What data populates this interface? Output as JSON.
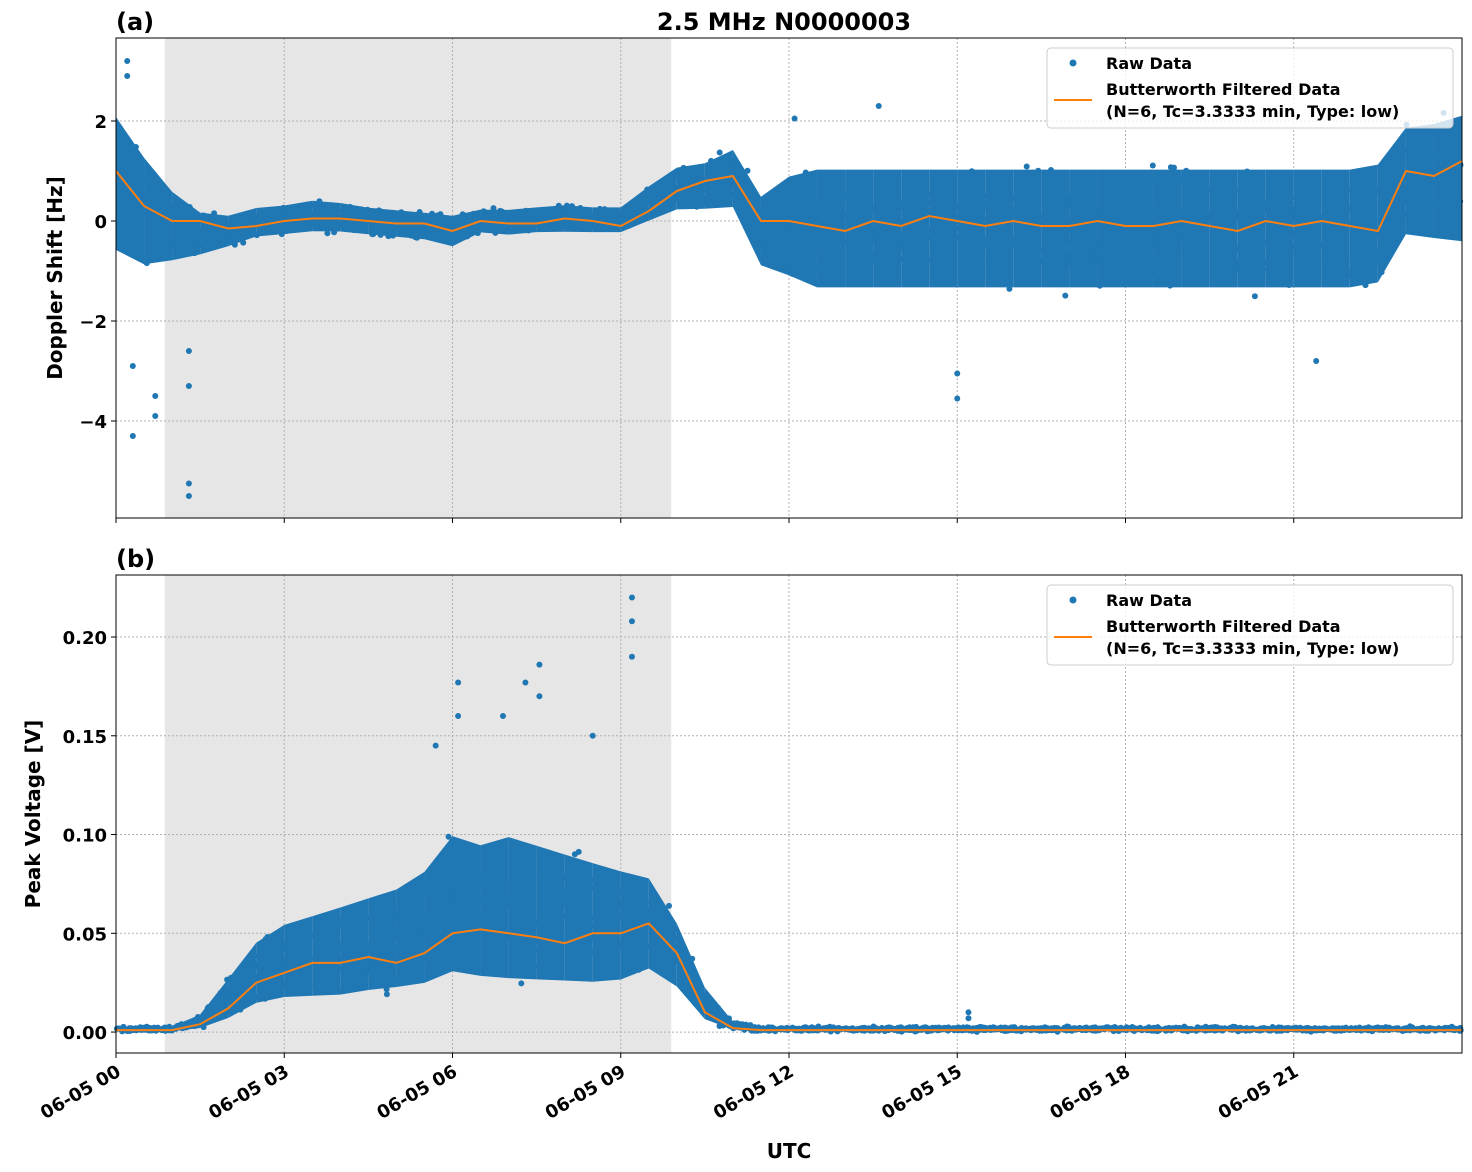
{
  "title": "2.5 MHz N0000003",
  "xlabel": "UTC",
  "colors": {
    "raw": "#1f77b4",
    "filtered": "#ff7f0e",
    "shade": "#e6e6e6"
  },
  "chart_data": [
    {
      "type": "scatter",
      "panel_label": "(a)",
      "ylabel": "Doppler Shift [Hz]",
      "xlim_hours": [
        0,
        24
      ],
      "ylim": [
        -5.94,
        3.66
      ],
      "yticks": [
        2,
        0,
        -2,
        -4
      ],
      "ytick_labels": [
        "2",
        "0",
        "−2",
        "−4"
      ],
      "xtick_labels": [
        "06-05 00",
        "06-05 03",
        "06-05 06",
        "06-05 09",
        "06-05 12",
        "06-05 15",
        "06-05 18",
        "06-05 21"
      ],
      "xticks_hours": [
        0,
        3,
        6,
        9,
        12,
        15,
        18,
        21
      ],
      "shaded_hours": [
        0.87,
        9.9
      ],
      "grid": true,
      "legend": {
        "placement": "top-right",
        "entries": [
          "Raw Data",
          "Butterworth Filtered Data",
          "(N=6, Tc=3.3333 min, Type: low)"
        ]
      },
      "x_hours": [
        0,
        0.5,
        1,
        1.5,
        2,
        2.5,
        3,
        3.5,
        4,
        4.5,
        5,
        5.5,
        6,
        6.5,
        7,
        7.5,
        8,
        8.5,
        9,
        9.5,
        10,
        10.5,
        11,
        11.5,
        12,
        12.5,
        13,
        13.5,
        14,
        14.5,
        15,
        15.5,
        16,
        16.5,
        17,
        17.5,
        18,
        18.5,
        19,
        19.5,
        20,
        20.5,
        21,
        21.5,
        22,
        22.5,
        23,
        23.5,
        24
      ],
      "filtered": [
        1.0,
        0.3,
        0.0,
        0.0,
        -0.15,
        -0.1,
        0.0,
        0.05,
        0.05,
        0.0,
        -0.05,
        -0.05,
        -0.2,
        0.0,
        -0.05,
        -0.05,
        0.05,
        0.0,
        -0.1,
        0.2,
        0.6,
        0.8,
        0.9,
        0.0,
        0.0,
        -0.1,
        -0.2,
        0.0,
        -0.1,
        0.1,
        0.0,
        -0.1,
        0.0,
        -0.1,
        -0.1,
        0.0,
        -0.1,
        -0.1,
        0.0,
        -0.1,
        -0.2,
        0.0,
        -0.1,
        0.0,
        -0.1,
        -0.2,
        1.0,
        0.9,
        1.2
      ],
      "raw_lower": [
        -1.0,
        -1.2,
        -1.0,
        -0.8,
        -0.6,
        -0.4,
        -0.35,
        -0.3,
        -0.3,
        -0.35,
        -0.4,
        -0.45,
        -0.6,
        -0.3,
        -0.35,
        -0.3,
        -0.3,
        -0.3,
        -0.3,
        -0.1,
        0.1,
        0.1,
        0.1,
        -1.1,
        -1.4,
        -1.7,
        -1.7,
        -1.7,
        -1.7,
        -1.7,
        -1.7,
        -1.7,
        -1.7,
        -1.7,
        -1.7,
        -1.7,
        -1.7,
        -1.7,
        -1.7,
        -1.7,
        -1.7,
        -1.7,
        -1.7,
        -1.7,
        -1.7,
        -1.6,
        -0.6,
        -0.7,
        -0.8
      ],
      "raw_upper": [
        2.5,
        1.6,
        0.8,
        0.3,
        0.2,
        0.35,
        0.4,
        0.5,
        0.45,
        0.35,
        0.3,
        0.25,
        0.2,
        0.3,
        0.3,
        0.35,
        0.4,
        0.35,
        0.35,
        0.8,
        1.2,
        1.3,
        1.6,
        0.7,
        1.2,
        1.4,
        1.4,
        1.4,
        1.4,
        1.4,
        1.4,
        1.4,
        1.4,
        1.4,
        1.4,
        1.4,
        1.4,
        1.4,
        1.4,
        1.4,
        1.4,
        1.4,
        1.4,
        1.4,
        1.4,
        1.5,
        2.2,
        2.3,
        2.5
      ],
      "outliers": [
        [
          0.3,
          -4.3
        ],
        [
          1.3,
          -5.5
        ],
        [
          1.3,
          -5.25
        ],
        [
          0.7,
          -3.9
        ],
        [
          0.7,
          -3.5
        ],
        [
          0.3,
          -2.9
        ],
        [
          1.3,
          -3.3
        ],
        [
          1.3,
          -2.6
        ],
        [
          15,
          -3.55
        ],
        [
          15,
          -3.05
        ],
        [
          13.6,
          2.3
        ],
        [
          12.1,
          2.05
        ],
        [
          0.2,
          3.2
        ],
        [
          0.2,
          2.9
        ],
        [
          21.4,
          -2.8
        ]
      ]
    },
    {
      "type": "scatter",
      "panel_label": "(b)",
      "ylabel": "Peak Voltage [V]",
      "xlim_hours": [
        0,
        24
      ],
      "ylim": [
        -0.0106,
        0.2314
      ],
      "yticks": [
        0,
        0.05,
        0.1,
        0.15,
        0.2
      ],
      "ytick_labels": [
        "0.00",
        "0.05",
        "0.10",
        "0.15",
        "0.20"
      ],
      "xtick_labels": [
        "06-05 00",
        "06-05 03",
        "06-05 06",
        "06-05 09",
        "06-05 12",
        "06-05 15",
        "06-05 18",
        "06-05 21"
      ],
      "xticks_hours": [
        0,
        3,
        6,
        9,
        12,
        15,
        18,
        21
      ],
      "shaded_hours": [
        0.87,
        9.9
      ],
      "grid": true,
      "legend": {
        "placement": "top-right",
        "entries": [
          "Raw Data",
          "Butterworth Filtered Data",
          "(N=6, Tc=3.3333 min, Type: low)"
        ]
      },
      "x_hours": [
        0,
        0.5,
        1,
        1.5,
        2,
        2.5,
        3,
        3.5,
        4,
        4.5,
        5,
        5.5,
        6,
        6.5,
        7,
        7.5,
        8,
        8.5,
        9,
        9.5,
        10,
        10.5,
        11,
        11.5,
        12,
        12.5,
        13,
        13.5,
        14,
        14.5,
        15,
        15.5,
        16,
        16.5,
        17,
        17.5,
        18,
        18.5,
        19,
        19.5,
        20,
        20.5,
        21,
        21.5,
        22,
        22.5,
        23,
        23.5,
        24
      ],
      "filtered": [
        0.001,
        0.001,
        0.001,
        0.004,
        0.012,
        0.025,
        0.03,
        0.035,
        0.035,
        0.038,
        0.035,
        0.04,
        0.05,
        0.052,
        0.05,
        0.048,
        0.045,
        0.05,
        0.05,
        0.055,
        0.04,
        0.01,
        0.002,
        0.001,
        0.001,
        0.001,
        0.001,
        0.001,
        0.001,
        0.001,
        0.001,
        0.001,
        0.001,
        0.001,
        0.001,
        0.001,
        0.001,
        0.001,
        0.001,
        0.001,
        0.001,
        0.001,
        0.001,
        0.001,
        0.001,
        0.001,
        0.001,
        0.001,
        0.001
      ],
      "raw_lower": [
        0,
        0,
        0,
        0.001,
        0.004,
        0.01,
        0.012,
        0.012,
        0.012,
        0.014,
        0.015,
        0.016,
        0.02,
        0.018,
        0.016,
        0.016,
        0.016,
        0.016,
        0.018,
        0.025,
        0.018,
        0.004,
        0.0005,
        0,
        0,
        0,
        0,
        0,
        0,
        0,
        0,
        0,
        0,
        0,
        0,
        0,
        0,
        0,
        0,
        0,
        0,
        0,
        0,
        0,
        0,
        0,
        0,
        0,
        0
      ],
      "raw_upper": [
        0.003,
        0.003,
        0.003,
        0.01,
        0.03,
        0.05,
        0.06,
        0.065,
        0.07,
        0.075,
        0.08,
        0.09,
        0.11,
        0.105,
        0.11,
        0.105,
        0.1,
        0.095,
        0.09,
        0.085,
        0.06,
        0.025,
        0.006,
        0.003,
        0.003,
        0.003,
        0.003,
        0.003,
        0.003,
        0.003,
        0.003,
        0.003,
        0.003,
        0.003,
        0.003,
        0.003,
        0.003,
        0.003,
        0.003,
        0.003,
        0.003,
        0.003,
        0.003,
        0.003,
        0.003,
        0.003,
        0.003,
        0.003,
        0.003
      ],
      "outliers": [
        [
          9.2,
          0.22
        ],
        [
          9.2,
          0.208
        ],
        [
          9.2,
          0.19
        ],
        [
          7.55,
          0.186
        ],
        [
          7.55,
          0.17
        ],
        [
          6.1,
          0.177
        ],
        [
          7.3,
          0.177
        ],
        [
          6.1,
          0.16
        ],
        [
          6.9,
          0.16
        ],
        [
          5.7,
          0.145
        ],
        [
          8.5,
          0.15
        ],
        [
          15.2,
          0.01
        ],
        [
          15.2,
          0.007
        ]
      ]
    }
  ]
}
